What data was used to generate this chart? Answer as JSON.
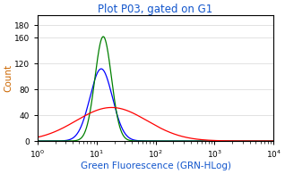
{
  "title": "Plot P03, gated on G1",
  "xlabel": "Green Fluorescence (GRN-HLog)",
  "ylabel": "Count",
  "title_color": "#1155CC",
  "xlabel_color": "#1155CC",
  "ylabel_color": "#CC6600",
  "xmin": 1.0,
  "xmax": 10000.0,
  "ymin": 0,
  "ymax": 195,
  "yticks": [
    0,
    40,
    80,
    120,
    160,
    180
  ],
  "ytick_labels": [
    "0",
    "40",
    "80",
    "120",
    "160",
    "180"
  ],
  "background_color": "#ffffff",
  "green_peak_x": 13.0,
  "green_peak_y": 162,
  "green_sigma": 0.14,
  "blue_peak_x": 12.0,
  "blue_peak_y": 112,
  "blue_sigma": 0.19,
  "red_peak_x": 18.0,
  "red_peak_y": 52,
  "red_sigma": 0.6,
  "tick_fontsize": 6.5,
  "label_fontsize": 7.5,
  "title_fontsize": 8.5,
  "linewidth": 0.9
}
